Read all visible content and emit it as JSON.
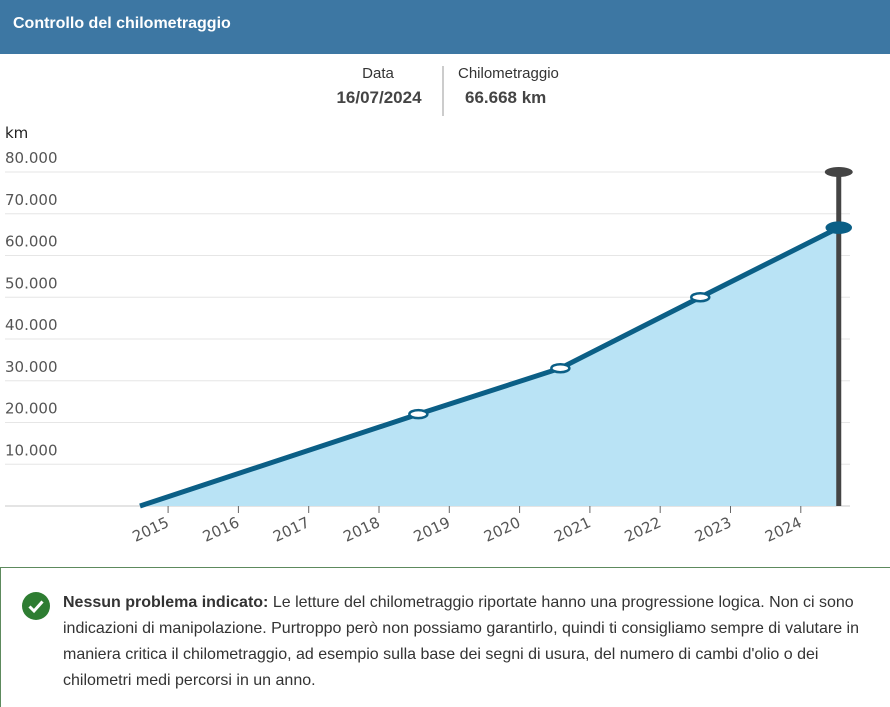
{
  "header": {
    "title": "Controllo del chilometraggio"
  },
  "tooltip": {
    "date_label": "Data",
    "date": "16/07/2024",
    "mileage_label": "Chilometraggio",
    "mileage": "66.668 km"
  },
  "chart_data": {
    "type": "area",
    "y_label": "km",
    "x": [
      2014.6,
      2018.56,
      2020.58,
      2022.57,
      2024.54
    ],
    "values": [
      0,
      22000,
      33000,
      50000,
      66668
    ],
    "xlim": [
      2012.68,
      2024.7
    ],
    "xticks": [
      2015,
      2016,
      2017,
      2018,
      2019,
      2020,
      2021,
      2022,
      2023,
      2024
    ],
    "ylim": [
      0,
      80000
    ],
    "yticks": [
      0,
      {
        "value": 10000,
        "label": "10.000"
      },
      {
        "value": 20000,
        "label": "20.000"
      },
      {
        "value": 30000,
        "label": "30.000"
      },
      {
        "value": 40000,
        "label": "40.000"
      },
      {
        "value": 50000,
        "label": "50.000"
      },
      {
        "value": 60000,
        "label": "60.000"
      },
      {
        "value": 70000,
        "label": "70.000"
      },
      {
        "value": 80000,
        "label": "80.000"
      }
    ],
    "line_color": "#0b5f86",
    "fill_color": "#b9e3f5",
    "cursor_color": "#444444",
    "grid": true
  },
  "notice": {
    "title": "Nessun problema indicato:",
    "text": "Le letture del chilometraggio riportate hanno una progressione logica. Non ci sono indicazioni di manipolazione. Purtroppo però non possiamo garantirlo, quindi ti consigliamo sempre di valutare in maniera critica il chilometraggio, ad esempio sulla base dei segni di usura, del numero di cambi d'olio o dei chilometri medi percorsi in un anno."
  }
}
